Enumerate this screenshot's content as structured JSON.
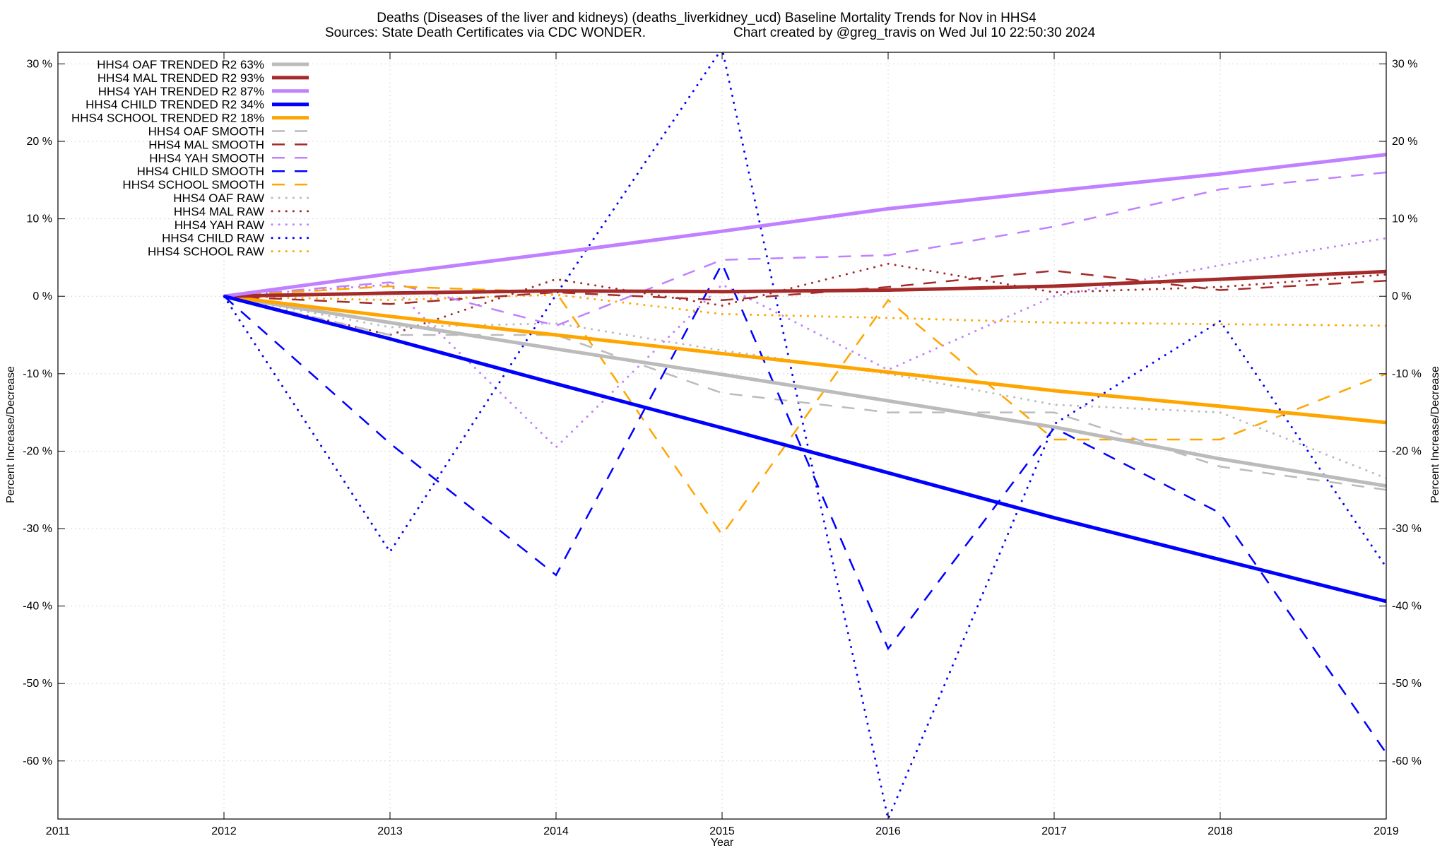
{
  "title": {
    "line1": "Deaths (Diseases of the liver and kidneys) (deaths_liverkidney_ucd)  Baseline Mortality Trends for Nov in HHS4",
    "line2_left": "Sources: State Death Certificates via CDC WONDER.",
    "line2_right": "Chart created by @greg_travis on Wed Jul 10 22:50:30 2024"
  },
  "chart_data": {
    "type": "line",
    "xlabel": "Year",
    "ylabel": "Percent Increase/Decrease",
    "ylabel_right": "Percent Increase/Decrease",
    "xlim": [
      2011,
      2019
    ],
    "ylim": [
      -67.5,
      31.5
    ],
    "x_ticks": [
      "2011",
      "2012",
      "2013",
      "2014",
      "2015",
      "2016",
      "2017",
      "2018",
      "2019"
    ],
    "y_ticks": [
      {
        "v": 30,
        "label": "30 %"
      },
      {
        "v": 20,
        "label": "20 %"
      },
      {
        "v": 10,
        "label": "10 %"
      },
      {
        "v": 0,
        "label": "0 %"
      },
      {
        "v": -10,
        "label": "-10 %"
      },
      {
        "v": -20,
        "label": "-20 %"
      },
      {
        "v": -30,
        "label": "-30 %"
      },
      {
        "v": -40,
        "label": "-40 %"
      },
      {
        "v": -50,
        "label": "-50 %"
      },
      {
        "v": -60,
        "label": "-60 %"
      }
    ],
    "grid": true,
    "legend_position": "top-left",
    "x": [
      2012,
      2013,
      2014,
      2015,
      2016,
      2017,
      2018,
      2019
    ],
    "series": [
      {
        "name": "HHS4 OAF TRENDED R2  63%",
        "style": "solid",
        "color": "#bbbbbb",
        "values": [
          0,
          -3.4,
          -6.8,
          -10.1,
          -13.5,
          -16.9,
          -21.0,
          -24.5
        ]
      },
      {
        "name": "HHS4 MAL TRENDED R2  93%",
        "style": "solid",
        "color": "#a52a2a",
        "values": [
          0,
          0.4,
          0.7,
          0.6,
          0.8,
          1.3,
          2.2,
          3.2
        ]
      },
      {
        "name": "HHS4 YAH TRENDED R2  87%",
        "style": "solid",
        "color": "#c080ff",
        "values": [
          0,
          2.9,
          5.6,
          8.4,
          11.3,
          13.6,
          15.8,
          18.3
        ]
      },
      {
        "name": "HHS4 CHILD TRENDED R2  34%",
        "style": "solid",
        "color": "#0000ff",
        "values": [
          0,
          -5.5,
          -11.3,
          -17.0,
          -22.8,
          -28.6,
          -34.0,
          -39.4
        ]
      },
      {
        "name": "HHS4 SCHOOL TRENDED R2  18%",
        "style": "solid",
        "color": "#ffa500",
        "values": [
          0,
          -2.6,
          -5.0,
          -7.4,
          -9.8,
          -12.2,
          -14.2,
          -16.3
        ]
      },
      {
        "name": "HHS4 OAF SMOOTH",
        "style": "dashed",
        "color": "#bbbbbb",
        "values": [
          0,
          -5.0,
          -5.0,
          -12.5,
          -15.0,
          -15.0,
          -22.0,
          -25.0
        ]
      },
      {
        "name": "HHS4 MAL SMOOTH",
        "style": "dashed",
        "color": "#a52a2a",
        "values": [
          0,
          -1.0,
          0.5,
          -0.5,
          1.2,
          3.3,
          0.8,
          2.0
        ]
      },
      {
        "name": "HHS4 YAH SMOOTH",
        "style": "dashed",
        "color": "#c080ff",
        "values": [
          0,
          1.8,
          -3.8,
          4.7,
          5.3,
          9.0,
          13.8,
          16.0
        ]
      },
      {
        "name": "HHS4 CHILD SMOOTH",
        "style": "dashed",
        "color": "#0000ff",
        "values": [
          0,
          -19.0,
          -36.0,
          4.2,
          -45.5,
          -17.0,
          -28.0,
          -59.0
        ]
      },
      {
        "name": "HHS4 SCHOOL SMOOTH",
        "style": "dashed",
        "color": "#ffa500",
        "values": [
          0,
          1.3,
          0.5,
          -30.8,
          -0.5,
          -18.5,
          -18.5,
          -10.0
        ]
      },
      {
        "name": "HHS4 OAF RAW",
        "style": "dotted",
        "color": "#bbbbbb",
        "values": [
          0,
          -4.0,
          -3.5,
          -7.0,
          -10.0,
          -14.0,
          -15.0,
          -23.5
        ]
      },
      {
        "name": "HHS4 MAL RAW",
        "style": "dotted",
        "color": "#a52a2a",
        "values": [
          0,
          -5.0,
          2.2,
          -1.2,
          4.2,
          0.5,
          1.2,
          2.8
        ]
      },
      {
        "name": "HHS4 YAH RAW",
        "style": "dotted",
        "color": "#c080ff",
        "values": [
          0,
          1.5,
          -19.5,
          1.5,
          -9.5,
          0.0,
          4.0,
          7.5
        ]
      },
      {
        "name": "HHS4 CHILD RAW",
        "style": "dotted",
        "color": "#0000ff",
        "values": [
          0,
          -33.0,
          0.2,
          32.0,
          -67.5,
          -16.5,
          -3.2,
          -35.0
        ]
      },
      {
        "name": "HHS4 SCHOOL RAW",
        "style": "dotted",
        "color": "#ffa500",
        "values": [
          0,
          -0.5,
          0.2,
          -2.3,
          -2.8,
          -3.4,
          -3.6,
          -3.8
        ]
      }
    ]
  }
}
